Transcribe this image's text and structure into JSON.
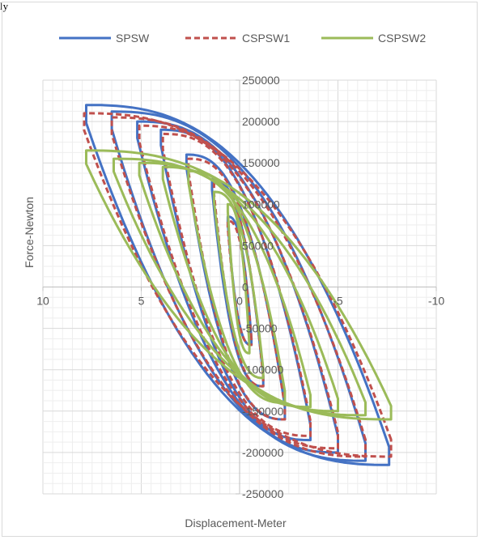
{
  "page_fragment": "ly",
  "chart_data": {
    "type": "line",
    "title": "",
    "xlabel": "Displacement-Meter",
    "ylabel": "Force-Newton",
    "xlim": [
      10,
      -10
    ],
    "ylim": [
      -250000,
      250000
    ],
    "x_ticks": [
      10,
      5,
      0,
      -5,
      -10
    ],
    "y_ticks": [
      250000,
      200000,
      150000,
      100000,
      50000,
      0,
      -50000,
      -100000,
      -150000,
      -200000,
      -250000
    ],
    "grid": true,
    "legend": "top",
    "series": [
      {
        "name": "SPSW",
        "color": "#4472c4",
        "dash": "solid",
        "loops": [
          {
            "xmin": -0.6,
            "xmax": 0.6,
            "ymin": -70000,
            "ymax": 85000
          },
          {
            "xmin": -1.2,
            "xmax": 1.4,
            "ymin": -120000,
            "ymax": 130000
          },
          {
            "xmin": -2.3,
            "xmax": 2.7,
            "ymin": -160000,
            "ymax": 160000
          },
          {
            "xmin": -3.6,
            "xmax": 4.0,
            "ymin": -185000,
            "ymax": 190000
          },
          {
            "xmin": -5.0,
            "xmax": 5.2,
            "ymin": -200000,
            "ymax": 200000
          },
          {
            "xmin": -6.4,
            "xmax": 6.5,
            "ymin": -210000,
            "ymax": 212000
          },
          {
            "xmin": -7.6,
            "xmax": 7.8,
            "ymin": -215000,
            "ymax": 220000
          }
        ]
      },
      {
        "name": "CSPSW1",
        "color": "#c0504d",
        "dash": "dashed",
        "loops": [
          {
            "xmin": -0.6,
            "xmax": 0.6,
            "ymin": -70000,
            "ymax": 80000
          },
          {
            "xmin": -1.2,
            "xmax": 1.3,
            "ymin": -120000,
            "ymax": 125000
          },
          {
            "xmin": -2.3,
            "xmax": 2.6,
            "ymin": -160000,
            "ymax": 155000
          },
          {
            "xmin": -3.6,
            "xmax": 3.9,
            "ymin": -180000,
            "ymax": 185000
          },
          {
            "xmin": -5.0,
            "xmax": 5.1,
            "ymin": -195000,
            "ymax": 195000
          },
          {
            "xmin": -6.4,
            "xmax": 6.5,
            "ymin": -205000,
            "ymax": 205000
          },
          {
            "xmin": -7.7,
            "xmax": 7.9,
            "ymin": -205000,
            "ymax": 210000
          }
        ]
      },
      {
        "name": "CSPSW2",
        "color": "#9bbb59",
        "dash": "solid",
        "loops": [
          {
            "xmin": -0.5,
            "xmax": 0.6,
            "ymin": -80000,
            "ymax": 100000
          },
          {
            "xmin": -1.2,
            "xmax": 1.3,
            "ymin": -110000,
            "ymax": 115000
          },
          {
            "xmin": -2.3,
            "xmax": 2.6,
            "ymin": -140000,
            "ymax": 140000
          },
          {
            "xmin": -3.6,
            "xmax": 3.9,
            "ymin": -145000,
            "ymax": 145000
          },
          {
            "xmin": -5.0,
            "xmax": 5.1,
            "ymin": -150000,
            "ymax": 150000
          },
          {
            "xmin": -6.4,
            "xmax": 6.4,
            "ymin": -155000,
            "ymax": 155000
          },
          {
            "xmin": -7.7,
            "xmax": 7.8,
            "ymin": -160000,
            "ymax": 165000
          }
        ]
      }
    ]
  }
}
